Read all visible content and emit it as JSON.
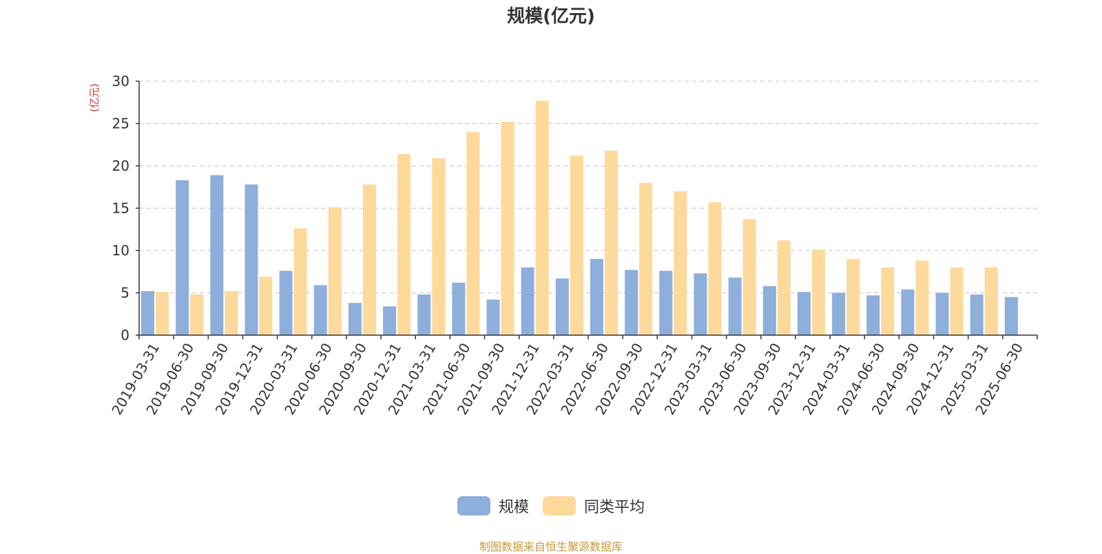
{
  "chart_data": {
    "type": "bar",
    "title": "规模(亿元)",
    "ylabel": "(亿元)",
    "xlabel": "",
    "ylim": [
      0,
      30
    ],
    "yticks": [
      0,
      5,
      10,
      15,
      20,
      25,
      30
    ],
    "grid": "horizontal-dashed",
    "legend_position": "bottom",
    "categories": [
      "2019-03-31",
      "2019-06-30",
      "2019-09-30",
      "2019-12-31",
      "2020-03-31",
      "2020-06-30",
      "2020-09-30",
      "2020-12-31",
      "2021-03-31",
      "2021-06-30",
      "2021-09-30",
      "2021-12-31",
      "2022-03-31",
      "2022-06-30",
      "2022-09-30",
      "2022-12-31",
      "2023-03-31",
      "2023-06-30",
      "2023-09-30",
      "2023-12-31",
      "2024-03-31",
      "2024-06-30",
      "2024-09-30",
      "2024-12-31",
      "2025-03-31",
      "2025-06-30"
    ],
    "series": [
      {
        "name": "规模",
        "color": "#8eaedb",
        "values": [
          5.2,
          18.3,
          18.9,
          17.8,
          7.6,
          5.9,
          3.8,
          3.4,
          4.8,
          6.2,
          4.2,
          8.0,
          6.7,
          9.0,
          7.7,
          7.6,
          7.3,
          6.8,
          5.8,
          5.1,
          5.0,
          4.7,
          5.4,
          5.0,
          4.8,
          4.5
        ]
      },
      {
        "name": "同类平均",
        "color": "#fdd99b",
        "values": [
          5.1,
          4.8,
          5.2,
          6.9,
          12.6,
          15.1,
          17.8,
          21.4,
          20.9,
          24.0,
          25.2,
          27.7,
          21.2,
          21.8,
          18.0,
          17.0,
          15.7,
          13.7,
          11.2,
          10.1,
          9.0,
          8.0,
          8.8,
          8.0,
          8.0,
          null
        ]
      }
    ]
  },
  "colors": {
    "axis": "#333333",
    "grid": "#cccccc",
    "ylabel": "#e03030",
    "source": "#c89a40",
    "text": "#333333"
  },
  "source_text": "制图数据来自恒生聚源数据库"
}
